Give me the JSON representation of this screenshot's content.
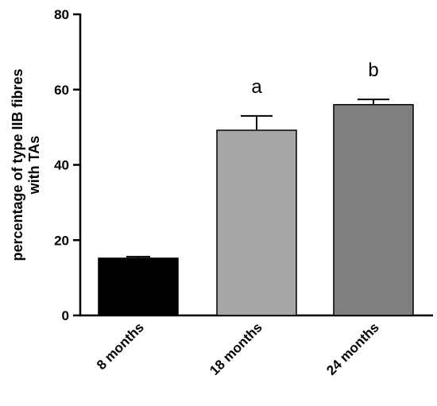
{
  "chart_data": {
    "type": "bar",
    "categories": [
      "8 months",
      "18 months",
      "24 months"
    ],
    "values": [
      15.2,
      49.2,
      56.0
    ],
    "error_upper": [
      15.6,
      53.0,
      57.4
    ],
    "annotations": [
      "",
      "a",
      "b"
    ],
    "colors": [
      "#000000",
      "#a6a6a6",
      "#7f7f7f"
    ],
    "ylabel_lines": [
      "percentage of type IIB fibres",
      "with TAs"
    ],
    "xlabel": "",
    "ylim": [
      0,
      80
    ],
    "yticks": [
      0,
      20,
      40,
      60,
      80
    ],
    "grid": false,
    "legend": "none"
  }
}
